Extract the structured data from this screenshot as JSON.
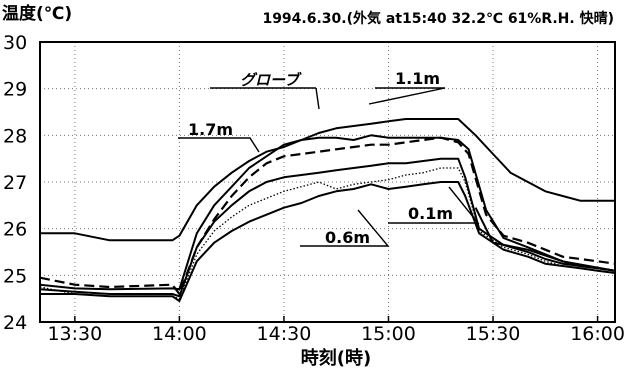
{
  "chart_data": {
    "type": "line",
    "title": "1994.6.30.(外気 at15:40 32.2℃ 61%R.H. 快晴)",
    "xlabel": "時刻(時)",
    "ylabel": "温度(℃)",
    "xlim": [
      "13:20",
      "16:05"
    ],
    "ylim": [
      24,
      30
    ],
    "x_ticks": [
      "13:30",
      "14:00",
      "14:30",
      "15:00",
      "15:30",
      "16:00"
    ],
    "y_ticks": [
      "24",
      "25",
      "26",
      "27",
      "28",
      "29",
      "30"
    ],
    "grid": true,
    "series": [
      {
        "name": "グローブ",
        "style": "solid",
        "points": [
          [
            "13:20",
            25.9
          ],
          [
            "13:30",
            25.9
          ],
          [
            "13:40",
            25.75
          ],
          [
            "13:58",
            25.75
          ],
          [
            "14:00",
            25.85
          ],
          [
            "14:05",
            26.5
          ],
          [
            "14:10",
            26.9
          ],
          [
            "14:15",
            27.2
          ],
          [
            "14:20",
            27.45
          ],
          [
            "14:25",
            27.65
          ],
          [
            "14:30",
            27.75
          ],
          [
            "14:35",
            27.9
          ],
          [
            "14:40",
            28.05
          ],
          [
            "14:45",
            28.15
          ],
          [
            "14:50",
            28.2
          ],
          [
            "14:55",
            28.25
          ],
          [
            "15:00",
            28.3
          ],
          [
            "15:05",
            28.35
          ],
          [
            "15:10",
            28.35
          ],
          [
            "15:15",
            28.35
          ],
          [
            "15:20",
            28.35
          ],
          [
            "15:25",
            28.0
          ],
          [
            "15:30",
            27.6
          ],
          [
            "15:35",
            27.2
          ],
          [
            "15:40",
            27.0
          ],
          [
            "15:45",
            26.8
          ],
          [
            "15:50",
            26.7
          ],
          [
            "15:55",
            26.6
          ],
          [
            "16:05",
            26.6
          ]
        ]
      },
      {
        "name": "1.7m",
        "style": "solid",
        "points": [
          [
            "13:20",
            24.8
          ],
          [
            "13:30",
            24.72
          ],
          [
            "13:40",
            24.7
          ],
          [
            "13:58",
            24.72
          ],
          [
            "14:00",
            24.7
          ],
          [
            "14:05",
            25.9
          ],
          [
            "14:10",
            26.5
          ],
          [
            "14:15",
            26.9
          ],
          [
            "14:20",
            27.3
          ],
          [
            "14:25",
            27.55
          ],
          [
            "14:30",
            27.8
          ],
          [
            "14:35",
            27.9
          ],
          [
            "14:40",
            27.95
          ],
          [
            "14:45",
            27.95
          ],
          [
            "14:50",
            27.9
          ],
          [
            "14:55",
            28.0
          ],
          [
            "15:00",
            27.95
          ],
          [
            "15:05",
            27.95
          ],
          [
            "15:10",
            27.95
          ],
          [
            "15:15",
            27.95
          ],
          [
            "15:20",
            27.9
          ],
          [
            "15:23",
            27.7
          ],
          [
            "15:28",
            26.4
          ],
          [
            "15:33",
            25.8
          ],
          [
            "15:40",
            25.6
          ],
          [
            "15:45",
            25.45
          ],
          [
            "15:50",
            25.3
          ],
          [
            "15:55",
            25.2
          ],
          [
            "16:00",
            25.15
          ],
          [
            "16:05",
            25.1
          ]
        ]
      },
      {
        "name": "1.1m",
        "style": "dashed",
        "points": [
          [
            "13:20",
            24.95
          ],
          [
            "13:30",
            24.8
          ],
          [
            "13:40",
            24.75
          ],
          [
            "13:58",
            24.8
          ],
          [
            "14:00",
            24.6
          ],
          [
            "14:05",
            25.6
          ],
          [
            "14:10",
            26.2
          ],
          [
            "14:15",
            26.7
          ],
          [
            "14:20",
            27.1
          ],
          [
            "14:25",
            27.4
          ],
          [
            "14:30",
            27.55
          ],
          [
            "14:35",
            27.6
          ],
          [
            "14:40",
            27.65
          ],
          [
            "14:45",
            27.7
          ],
          [
            "14:50",
            27.75
          ],
          [
            "14:55",
            27.8
          ],
          [
            "15:00",
            27.8
          ],
          [
            "15:05",
            27.85
          ],
          [
            "15:10",
            27.9
          ],
          [
            "15:15",
            27.95
          ],
          [
            "15:20",
            27.85
          ],
          [
            "15:23",
            27.6
          ],
          [
            "15:28",
            26.3
          ],
          [
            "15:33",
            25.85
          ],
          [
            "15:40",
            25.7
          ],
          [
            "15:45",
            25.55
          ],
          [
            "15:50",
            25.4
          ],
          [
            "15:55",
            25.35
          ],
          [
            "16:00",
            25.3
          ],
          [
            "16:05",
            25.25
          ]
        ]
      },
      {
        "name": "",
        "style": "solid",
        "points": [
          [
            "13:20",
            24.7
          ],
          [
            "13:30",
            24.65
          ],
          [
            "13:40",
            24.6
          ],
          [
            "13:58",
            24.6
          ],
          [
            "14:00",
            24.55
          ],
          [
            "14:05",
            25.6
          ],
          [
            "14:10",
            26.15
          ],
          [
            "14:15",
            26.5
          ],
          [
            "14:20",
            26.8
          ],
          [
            "14:25",
            27.0
          ],
          [
            "14:30",
            27.1
          ],
          [
            "14:35",
            27.15
          ],
          [
            "14:40",
            27.2
          ],
          [
            "14:45",
            27.25
          ],
          [
            "14:50",
            27.3
          ],
          [
            "14:55",
            27.35
          ],
          [
            "15:00",
            27.4
          ],
          [
            "15:05",
            27.4
          ],
          [
            "15:10",
            27.45
          ],
          [
            "15:15",
            27.5
          ],
          [
            "15:20",
            27.5
          ],
          [
            "15:22",
            27.1
          ],
          [
            "15:26",
            26.0
          ],
          [
            "15:33",
            25.65
          ],
          [
            "15:40",
            25.5
          ],
          [
            "15:45",
            25.35
          ],
          [
            "15:50",
            25.25
          ],
          [
            "15:55",
            25.2
          ],
          [
            "16:00",
            25.15
          ],
          [
            "16:05",
            25.1
          ]
        ]
      },
      {
        "name": "",
        "style": "dotted",
        "points": [
          [
            "13:20",
            24.75
          ],
          [
            "13:30",
            24.6
          ],
          [
            "13:40",
            24.55
          ],
          [
            "13:58",
            24.55
          ],
          [
            "14:00",
            24.5
          ],
          [
            "14:05",
            25.45
          ],
          [
            "14:10",
            25.95
          ],
          [
            "14:15",
            26.25
          ],
          [
            "14:20",
            26.5
          ],
          [
            "14:25",
            26.65
          ],
          [
            "14:30",
            26.8
          ],
          [
            "14:35",
            26.9
          ],
          [
            "14:40",
            27.0
          ],
          [
            "14:45",
            26.85
          ],
          [
            "14:50",
            26.95
          ],
          [
            "14:55",
            27.0
          ],
          [
            "15:00",
            27.05
          ],
          [
            "15:05",
            27.15
          ],
          [
            "15:10",
            27.2
          ],
          [
            "15:15",
            27.3
          ],
          [
            "15:20",
            27.3
          ],
          [
            "15:22",
            27.0
          ],
          [
            "15:26",
            25.95
          ],
          [
            "15:33",
            25.6
          ],
          [
            "15:40",
            25.45
          ],
          [
            "15:45",
            25.3
          ],
          [
            "15:50",
            25.2
          ],
          [
            "15:55",
            25.15
          ],
          [
            "16:00",
            25.1
          ],
          [
            "16:05",
            25.05
          ]
        ]
      },
      {
        "name": "0.6m",
        "style": "solid",
        "points": [
          [
            "13:20",
            24.6
          ],
          [
            "13:30",
            24.6
          ],
          [
            "13:40",
            24.55
          ],
          [
            "13:58",
            24.55
          ],
          [
            "14:00",
            24.45
          ],
          [
            "14:05",
            25.3
          ],
          [
            "14:10",
            25.7
          ],
          [
            "14:15",
            25.95
          ],
          [
            "14:20",
            26.15
          ],
          [
            "14:25",
            26.3
          ],
          [
            "14:30",
            26.45
          ],
          [
            "14:35",
            26.55
          ],
          [
            "14:40",
            26.7
          ],
          [
            "14:45",
            26.8
          ],
          [
            "14:50",
            26.85
          ],
          [
            "14:55",
            26.95
          ],
          [
            "15:00",
            26.85
          ],
          [
            "15:05",
            26.9
          ],
          [
            "15:10",
            26.95
          ],
          [
            "15:15",
            27.0
          ],
          [
            "15:20",
            27.0
          ],
          [
            "15:22",
            26.7
          ],
          [
            "15:26",
            25.9
          ],
          [
            "15:33",
            25.55
          ],
          [
            "15:40",
            25.4
          ],
          [
            "15:45",
            25.25
          ],
          [
            "15:50",
            25.2
          ],
          [
            "15:55",
            25.15
          ],
          [
            "16:00",
            25.1
          ],
          [
            "16:05",
            25.05
          ]
        ]
      },
      {
        "name": "0.1m",
        "style": "solid",
        "points": [
          [
            "15:25",
            26.45
          ],
          [
            "15:30",
            25.7
          ],
          [
            "15:40",
            25.55
          ],
          [
            "15:50",
            25.3
          ],
          [
            "16:05",
            25.1
          ]
        ]
      }
    ],
    "annotations": [
      {
        "text": "グローブ",
        "target_series": 0
      },
      {
        "text": "1.1m",
        "target_series": 2
      },
      {
        "text": "1.7m",
        "target_series": 1
      },
      {
        "text": "0.6m",
        "target_series": 5
      },
      {
        "text": "0.1m",
        "target_series": 6
      }
    ]
  }
}
